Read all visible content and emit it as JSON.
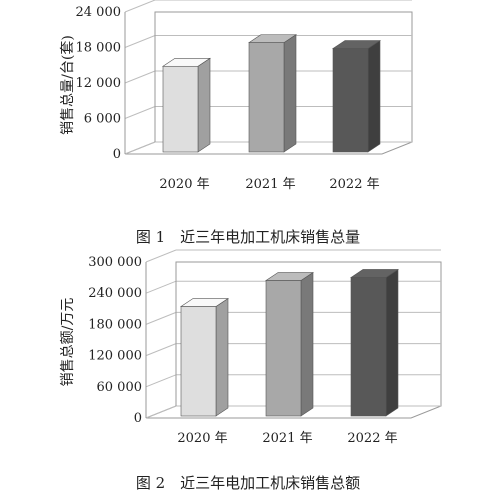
{
  "chart_data": [
    {
      "type": "bar",
      "categories": [
        "2020 年",
        "2021 年",
        "2022 年"
      ],
      "values": [
        15500,
        19500,
        18500
      ],
      "ylabel": "销售总量/台(套)",
      "ylim": [
        0,
        24000
      ],
      "yticks": [
        0,
        6000,
        12000,
        18000,
        24000
      ],
      "ytick_labels": [
        "0",
        "6 000",
        "12 000",
        "18 000",
        "24 000"
      ],
      "caption": "图 1　近三年电加工机床销售总量",
      "grid": true,
      "bar_colors": [
        "#dedede",
        "#a8a8a8",
        "#585858"
      ]
    },
    {
      "type": "bar",
      "categories": [
        "2020 年",
        "2021 年",
        "2022 年"
      ],
      "values": [
        222000,
        272000,
        278000
      ],
      "ylabel": "销售总额/万元",
      "ylim": [
        0,
        300000
      ],
      "yticks": [
        0,
        60000,
        120000,
        180000,
        240000,
        300000
      ],
      "ytick_labels": [
        "0",
        "60 000",
        "120 000",
        "180 000",
        "240 000",
        "300 000"
      ],
      "caption": "图 2　近三年电加工机床销售总额",
      "grid": true,
      "bar_colors": [
        "#dedede",
        "#a8a8a8",
        "#585858"
      ]
    }
  ]
}
